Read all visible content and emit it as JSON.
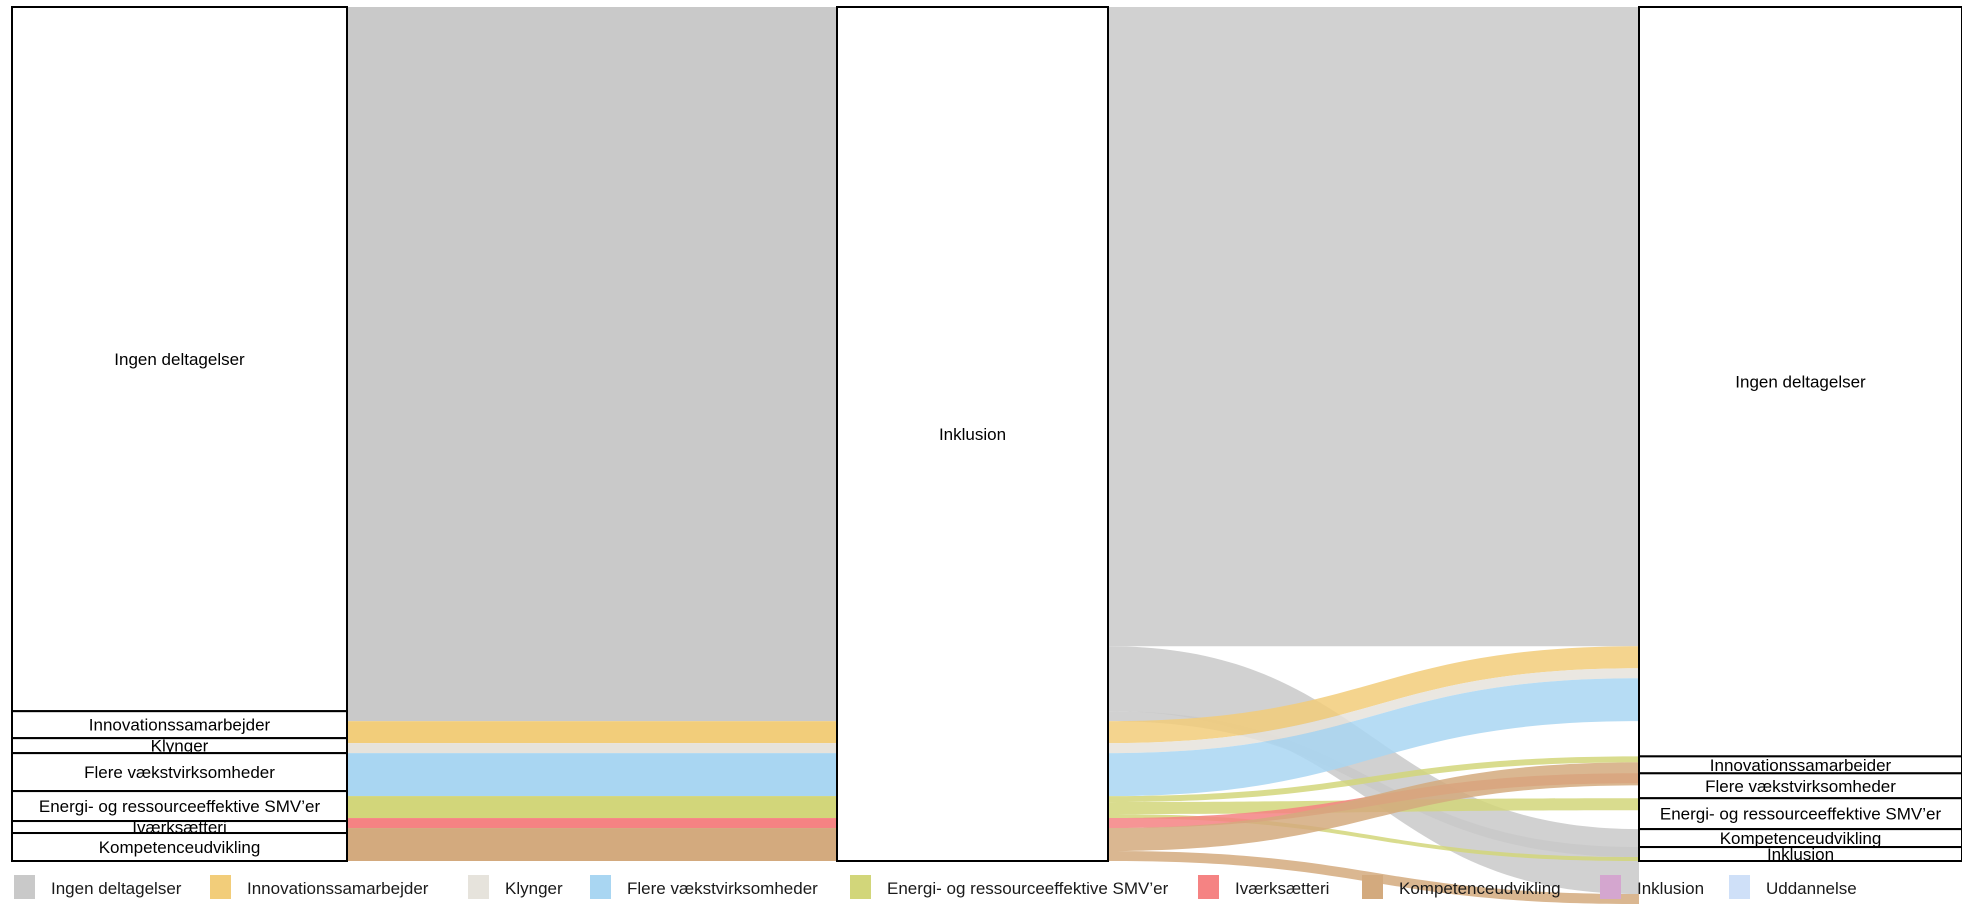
{
  "chart_data": {
    "type": "sankey",
    "title": "",
    "colors": {
      "Ingen deltagelser": "#c9c9c9",
      "Innovationssamarbejder": "#f2cd7a",
      "Klynger": "#e6e3dc",
      "Flere vækstvirksomheder": "#a9d6f2",
      "Energi- og ressourceeffektive SMV'er": "#d2d67a",
      "Iværksætteri": "#f58383",
      "Kompetenceudvikling": "#d3aa7e",
      "Inklusion": "#d4a6cf",
      "Uddannelse": "#cfe0f8"
    },
    "legend": [
      "Ingen deltagelser",
      "Innovationssamarbejder",
      "Klynger",
      "Flere vækstvirksomheder",
      "Energi- og ressourceeffektive SMV’er",
      "Iværksætteri",
      "Kompetenceudvikling",
      "Inklusion",
      "Uddannelse"
    ],
    "columns": [
      {
        "nodes": [
          {
            "label": "Ingen deltagelser",
            "value": 705
          },
          {
            "label": "Innovationssamarbejder",
            "value": 27
          },
          {
            "label": "Klynger",
            "value": 15
          },
          {
            "label": "Flere vækstvirksomheder",
            "value": 38
          },
          {
            "label": "Energi- og ressourceeffektive SMV’er",
            "value": 30
          },
          {
            "label": "Iværksætteri",
            "value": 12
          },
          {
            "label": "Kompetenceudvikling",
            "value": 28
          }
        ]
      },
      {
        "nodes": [
          {
            "label": "Inklusion",
            "value": 855
          }
        ]
      },
      {
        "nodes": [
          {
            "label": "Ingen deltagelser",
            "value": 752
          },
          {
            "label": "Innovationssamarbeider",
            "value": 17
          },
          {
            "label": "Flere vækstvirksomheder",
            "value": 25
          },
          {
            "label": "Energi- og ressourceeffektive SMV’er",
            "value": 31
          },
          {
            "label": "Kompetenceudvikling",
            "value": 18
          },
          {
            "label": "Inklusion",
            "value": 14
          }
        ]
      }
    ],
    "flows_left": [
      {
        "category": "Ingen deltagelser",
        "value": 715
      },
      {
        "category": "Innovationssamarbejder",
        "value": 22
      },
      {
        "category": "Klynger",
        "value": 10
      },
      {
        "category": "Flere vækstvirksomheder",
        "value": 43
      },
      {
        "category": "Energi- og ressourceeffektive SMV'er",
        "value": 22
      },
      {
        "category": "Iværksætteri",
        "value": 10
      },
      {
        "category": "Kompetenceudvikling",
        "value": 33
      }
    ],
    "flows_right": [
      {
        "category": "Ingen deltagelser",
        "value": 640,
        "target": "Ingen deltagelser"
      },
      {
        "category": "Ingen deltagelser",
        "value": 65,
        "target": "Kompetenceudvikling"
      },
      {
        "category": "Ingen deltagelser",
        "value": 10,
        "target": "Inklusion"
      },
      {
        "category": "Innovationssamarbejder",
        "value": 22,
        "target": "Ingen deltagelser"
      },
      {
        "category": "Klynger",
        "value": 10,
        "target": "Ingen deltagelser"
      },
      {
        "category": "Flere vækstvirksomheder",
        "value": 43,
        "target": "Ingen deltagelser"
      },
      {
        "category": "Energi- og ressourceeffektive SMV'er",
        "value": 6,
        "target": "Innovationssamarbeider"
      },
      {
        "category": "Energi- og ressourceeffektive SMV'er",
        "value": 12,
        "target": "Energi- og ressourceeffektive SMV’er"
      },
      {
        "category": "Energi- og ressourceeffektive SMV'er",
        "value": 4,
        "target": "Inklusion"
      },
      {
        "category": "Iværksætteri",
        "value": 10,
        "target": "Flere vækstvirksomheder"
      },
      {
        "category": "Kompetenceudvikling",
        "value": 23,
        "target": "Innovationssamarbeider"
      },
      {
        "category": "Kompetenceudvikling",
        "value": 10,
        "target": "Kompetenceudvikling"
      }
    ]
  }
}
